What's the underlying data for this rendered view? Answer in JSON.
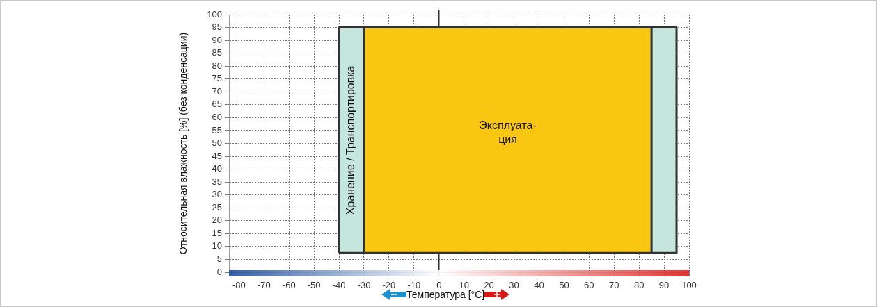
{
  "chart_data": {
    "type": "area",
    "xlabel": "Температура [°C]",
    "ylabel": "Относительная влажность [%] (без конденсации)",
    "xlim": [
      -84,
      100
    ],
    "xticks": [
      -80,
      -70,
      -60,
      -50,
      -40,
      -30,
      -20,
      -10,
      0,
      10,
      20,
      30,
      40,
      50,
      60,
      70,
      80,
      90,
      100
    ],
    "ylim": [
      0,
      100
    ],
    "yticks": [
      0,
      5,
      10,
      15,
      20,
      25,
      30,
      35,
      40,
      45,
      50,
      55,
      60,
      65,
      70,
      75,
      80,
      85,
      90,
      95,
      100
    ],
    "grid": true,
    "legend": false,
    "marker": "none",
    "ref_lines": [
      {
        "axis": "x",
        "value": 0,
        "color": "#333333"
      }
    ],
    "series": [
      {
        "name": "Хранение / Транспортировка",
        "color": "#c5e6dc",
        "x": [
          -40,
          -40,
          95,
          95,
          -40
        ],
        "values": [
          7.5,
          95,
          95,
          7.5,
          7.5
        ]
      },
      {
        "name": "Эксплуата-\nция",
        "color": "#f9c712",
        "x": [
          -30,
          -30,
          85,
          85,
          -30
        ],
        "values": [
          7.5,
          95,
          95,
          7.5,
          7.5
        ]
      }
    ]
  }
}
